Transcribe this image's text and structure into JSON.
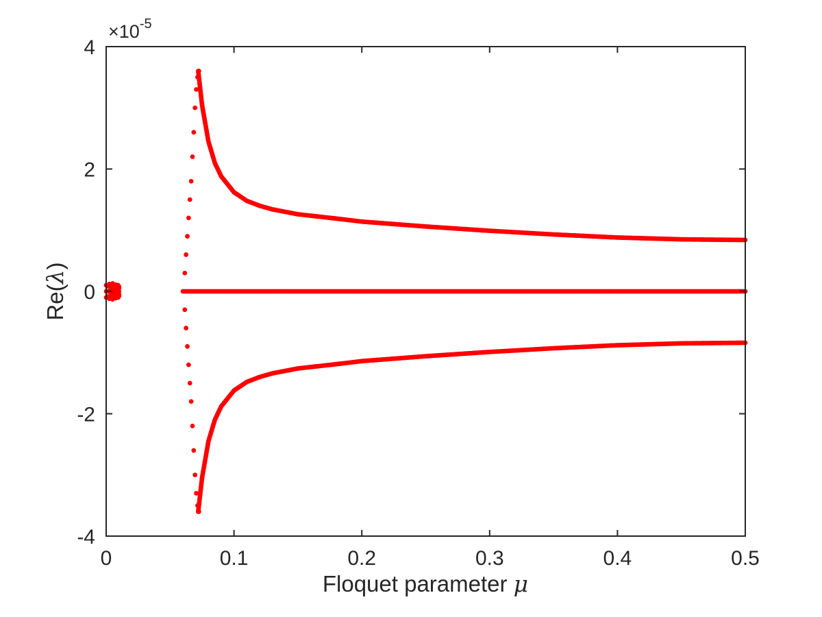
{
  "chart_data": {
    "type": "scatter",
    "title": "",
    "xlabel": "Floquet parameter",
    "xlabel_symbol": "μ",
    "ylabel_prefix": "Re(",
    "ylabel_symbol": "λ",
    "ylabel_suffix": ")",
    "y_multiplier_prefix": "×10",
    "y_multiplier_exponent": "-5",
    "xlim": [
      0,
      0.5
    ],
    "ylim": [
      -4,
      4
    ],
    "x_ticks": [
      0,
      0.1,
      0.2,
      0.3,
      0.4,
      0.5
    ],
    "x_tick_labels": [
      "0",
      "0.1",
      "0.2",
      "0.3",
      "0.4",
      "0.5"
    ],
    "y_ticks": [
      -4,
      -2,
      0,
      2,
      4
    ],
    "y_tick_labels": [
      "-4",
      "-2",
      "0",
      "2",
      "4"
    ],
    "grid": false,
    "legend": "none",
    "marker_color": "#ff0000",
    "series": [
      {
        "marker": "dot",
        "x": [
          0.0,
          0.0025,
          0.005,
          0.0075,
          0.01,
          0.0,
          0.0025,
          0.005,
          0.0075,
          0.01,
          0.0,
          0.0025,
          0.005,
          0.0075,
          0.01
        ],
        "y": [
          0.1,
          0.12,
          0.13,
          0.11,
          0.08,
          -0.1,
          -0.12,
          -0.13,
          -0.11,
          -0.08,
          0,
          0,
          0,
          0,
          0
        ]
      },
      {
        "marker": "dot",
        "x": [
          0.0615,
          0.0625,
          0.0635,
          0.0645,
          0.0655,
          0.0665,
          0.0675,
          0.0685,
          0.0695,
          0.0705,
          0.0715,
          0.0725
        ],
        "y": [
          0.3,
          0.6,
          0.9,
          1.2,
          1.5,
          1.8,
          2.2,
          2.6,
          3.0,
          3.3,
          3.5,
          3.6
        ]
      },
      {
        "marker": "dot",
        "x": [
          0.0615,
          0.0625,
          0.0635,
          0.0645,
          0.0655,
          0.0665,
          0.0675,
          0.0685,
          0.0695,
          0.0705,
          0.0715,
          0.0725
        ],
        "y": [
          -0.3,
          -0.6,
          -0.9,
          -1.2,
          -1.5,
          -1.8,
          -2.2,
          -2.6,
          -3.0,
          -3.3,
          -3.5,
          -3.6
        ]
      },
      {
        "marker": "dot",
        "x": [
          0.072,
          0.075,
          0.08,
          0.085,
          0.09,
          0.1,
          0.11,
          0.12,
          0.13,
          0.15,
          0.18,
          0.2,
          0.25,
          0.3,
          0.35,
          0.4,
          0.45,
          0.5
        ],
        "y": [
          3.6,
          3.05,
          2.45,
          2.1,
          1.88,
          1.62,
          1.48,
          1.4,
          1.34,
          1.26,
          1.19,
          1.14,
          1.06,
          0.99,
          0.93,
          0.88,
          0.85,
          0.84
        ]
      },
      {
        "marker": "dot",
        "x": [
          0.072,
          0.075,
          0.08,
          0.085,
          0.09,
          0.1,
          0.11,
          0.12,
          0.13,
          0.15,
          0.18,
          0.2,
          0.25,
          0.3,
          0.35,
          0.4,
          0.45,
          0.5
        ],
        "y": [
          -3.6,
          -3.05,
          -2.45,
          -2.1,
          -1.88,
          -1.62,
          -1.48,
          -1.4,
          -1.34,
          -1.26,
          -1.19,
          -1.14,
          -1.06,
          -0.99,
          -0.93,
          -0.88,
          -0.85,
          -0.84
        ]
      },
      {
        "marker": "dot",
        "x": [
          0.06,
          0.5
        ],
        "y": [
          0,
          0
        ]
      }
    ]
  }
}
